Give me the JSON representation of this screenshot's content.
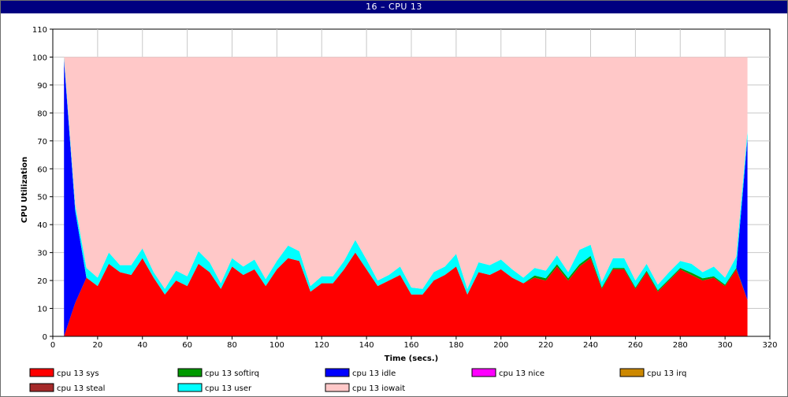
{
  "window": {
    "title": "16 – CPU 13"
  },
  "chart_data": {
    "type": "area",
    "stacked": true,
    "title": "16 – CPU 13",
    "xlabel": "Time (secs.)",
    "ylabel": "CPU Utilization",
    "xlim": [
      0,
      320
    ],
    "ylim": [
      0,
      110
    ],
    "xticks": [
      0,
      20,
      40,
      60,
      80,
      100,
      120,
      140,
      160,
      180,
      200,
      220,
      240,
      260,
      280,
      300,
      320
    ],
    "yticks": [
      0,
      10,
      20,
      30,
      40,
      50,
      60,
      70,
      80,
      90,
      100,
      110
    ],
    "grid": true,
    "legend_position": "bottom",
    "x": [
      5,
      10,
      15,
      20,
      25,
      30,
      35,
      40,
      45,
      50,
      55,
      60,
      65,
      70,
      75,
      80,
      85,
      90,
      95,
      100,
      105,
      110,
      115,
      120,
      125,
      130,
      135,
      140,
      145,
      150,
      155,
      160,
      165,
      170,
      175,
      180,
      185,
      190,
      195,
      200,
      205,
      210,
      215,
      220,
      225,
      230,
      235,
      240,
      245,
      250,
      255,
      260,
      265,
      270,
      275,
      280,
      285,
      290,
      295,
      300,
      305,
      310
    ],
    "series": [
      {
        "name": "cpu 13 sys",
        "color": "#ff0000",
        "values": [
          0,
          12,
          21,
          18,
          26,
          23,
          22,
          28,
          21,
          15,
          20,
          18,
          26,
          23,
          17,
          25,
          22,
          24,
          18,
          24,
          28,
          27,
          16,
          19,
          19,
          24,
          30,
          24,
          18,
          20,
          22,
          15,
          15,
          20,
          22,
          25,
          15,
          23,
          22,
          24,
          21,
          19,
          21,
          20,
          25,
          20,
          25,
          28,
          17,
          24,
          24,
          17,
          23,
          16,
          20,
          24,
          22,
          20,
          21,
          18,
          24,
          13
        ]
      },
      {
        "name": "cpu 13 softirq",
        "color": "#009900",
        "values": [
          0,
          0,
          0,
          0,
          0,
          0,
          0,
          0,
          0,
          0,
          0,
          0,
          0,
          0,
          0,
          0,
          0,
          0,
          0,
          0,
          0,
          0,
          0,
          0,
          0,
          0,
          0,
          0,
          0,
          0,
          0,
          0,
          0,
          0,
          0,
          0,
          0,
          0,
          0,
          0,
          0,
          0,
          0.8,
          0.8,
          0.8,
          0.8,
          0.8,
          0.8,
          0.5,
          0.5,
          0.5,
          0.5,
          0.5,
          0.5,
          0.5,
          0.5,
          0.8,
          0.8,
          0.5,
          0.5,
          0.5,
          0
        ]
      },
      {
        "name": "cpu 13 idle",
        "color": "#0000ff",
        "values": [
          99,
          33,
          0,
          0,
          0,
          0,
          0,
          0,
          0,
          0,
          0,
          0,
          0,
          0,
          0,
          0,
          0,
          0,
          0,
          0,
          0,
          0,
          0,
          0,
          0,
          0,
          0,
          0,
          0,
          0,
          0,
          0,
          0,
          0,
          0,
          0,
          0,
          0,
          0,
          0,
          0,
          0,
          0,
          0,
          0,
          0,
          0,
          0,
          0,
          0,
          0,
          0,
          0,
          0,
          0,
          0,
          0,
          0,
          0,
          0,
          0,
          58
        ]
      },
      {
        "name": "cpu 13 nice",
        "color": "#ff00ff",
        "values": [
          0,
          0,
          0,
          0,
          0,
          0,
          0,
          0,
          0,
          0,
          0,
          0,
          0,
          0,
          0,
          0,
          0,
          0,
          0,
          0,
          0,
          0,
          0,
          0,
          0,
          0,
          0,
          0,
          0,
          0,
          0,
          0,
          0,
          0,
          0,
          0,
          0,
          0,
          0,
          0,
          0,
          0,
          0,
          0,
          0,
          0,
          0,
          0,
          0,
          0,
          0,
          0,
          0,
          0,
          0,
          0,
          0,
          0,
          0,
          0,
          0,
          0
        ]
      },
      {
        "name": "cpu 13 irq",
        "color": "#cc8800",
        "values": [
          0,
          0,
          0,
          0,
          0,
          0,
          0,
          0,
          0,
          0,
          0,
          0,
          0,
          0,
          0,
          0,
          0,
          0,
          0,
          0,
          0,
          0,
          0,
          0,
          0,
          0,
          0,
          0,
          0,
          0,
          0,
          0,
          0,
          0,
          0,
          0,
          0,
          0,
          0,
          0,
          0,
          0,
          0,
          0,
          0,
          0,
          0,
          0,
          0,
          0,
          0,
          0,
          0,
          0,
          0,
          0,
          0,
          0,
          0,
          0,
          0,
          0
        ]
      },
      {
        "name": "cpu 13 steal",
        "color": "#a52a2a",
        "values": [
          0,
          0,
          0,
          0,
          0,
          0,
          0,
          0,
          0,
          0,
          0,
          0,
          0,
          0,
          0,
          0,
          0,
          0,
          0,
          0,
          0,
          0,
          0,
          0,
          0,
          0,
          0,
          0,
          0,
          0,
          0,
          0,
          0,
          0,
          0,
          0,
          0,
          0,
          0,
          0,
          0,
          0,
          0,
          0,
          0,
          0,
          0,
          0,
          0,
          0,
          0,
          0,
          0,
          0,
          0,
          0,
          0,
          0,
          0,
          0,
          0,
          0
        ]
      },
      {
        "name": "cpu 13 user",
        "color": "#00ffff",
        "values": [
          1,
          2,
          3.5,
          3,
          4,
          2.5,
          3.5,
          3.5,
          2,
          2,
          3.5,
          3.5,
          4.5,
          3.5,
          2,
          3,
          3,
          3.5,
          2.5,
          3,
          4.5,
          3.5,
          2,
          2.5,
          2.5,
          3,
          4.5,
          3.5,
          2,
          2,
          3,
          2.5,
          2,
          3,
          3,
          4.5,
          2,
          3.5,
          3.5,
          3.5,
          3,
          2,
          2.7,
          2.7,
          3.2,
          2.2,
          5.2,
          4,
          2,
          3.5,
          3.5,
          2.5,
          2.5,
          2,
          2.5,
          2.5,
          3.2,
          2.2,
          3.5,
          2.5,
          4,
          2.5
        ]
      },
      {
        "name": "cpu 13 iowait",
        "color": "#ffc8c8",
        "values": [
          0,
          53,
          75.5,
          79,
          70,
          74.5,
          74.5,
          68.5,
          77,
          83,
          76.5,
          78.5,
          69.5,
          73.5,
          81,
          72,
          75,
          72.5,
          79.5,
          73,
          67.5,
          69.5,
          82,
          78.5,
          78.5,
          73,
          65.5,
          72.5,
          80,
          78,
          75,
          82.5,
          83,
          77,
          75,
          70.5,
          83,
          73.5,
          74.5,
          72.5,
          76,
          79,
          75.5,
          76.5,
          71,
          77,
          69,
          67.2,
          80.5,
          72,
          72,
          80,
          74,
          81.5,
          77,
          73,
          74,
          77,
          75,
          79,
          71.5,
          26.5
        ]
      }
    ]
  }
}
